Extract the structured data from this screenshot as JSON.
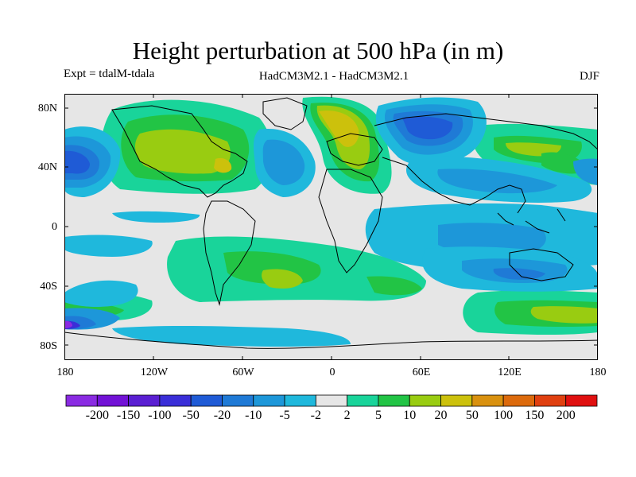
{
  "header": {
    "title": "Height perturbation at 500 hPa (in m)",
    "experiment": "Expt = tdalM-tdala",
    "model": "HadCM3M2.1 - HadCM3M2.1",
    "season": "DJF"
  },
  "axes": {
    "x_ticks": [
      "180",
      "120W",
      "60W",
      "0",
      "60E",
      "120E",
      "180"
    ],
    "y_ticks": [
      "80N",
      "40N",
      "0",
      "40S",
      "80S"
    ]
  },
  "colorbar": {
    "labels": [
      "-200",
      "-150",
      "-100",
      "-50",
      "-20",
      "-10",
      "-5",
      "-2",
      "2",
      "5",
      "10",
      "20",
      "50",
      "100",
      "150",
      "200"
    ],
    "colors": [
      "#8a2be2",
      "#7212d6",
      "#5a1fd2",
      "#3a2ed8",
      "#1f5bd6",
      "#1f7ad6",
      "#1d97d9",
      "#1fb8dc",
      "#e6e6e6",
      "#19d49a",
      "#22c445",
      "#99cc11",
      "#ccc10c",
      "#d9910f",
      "#dc6a0c",
      "#e04010",
      "#e01010"
    ]
  },
  "map": {
    "background": "#e6e6e6",
    "coastline_color": "#000000"
  }
}
